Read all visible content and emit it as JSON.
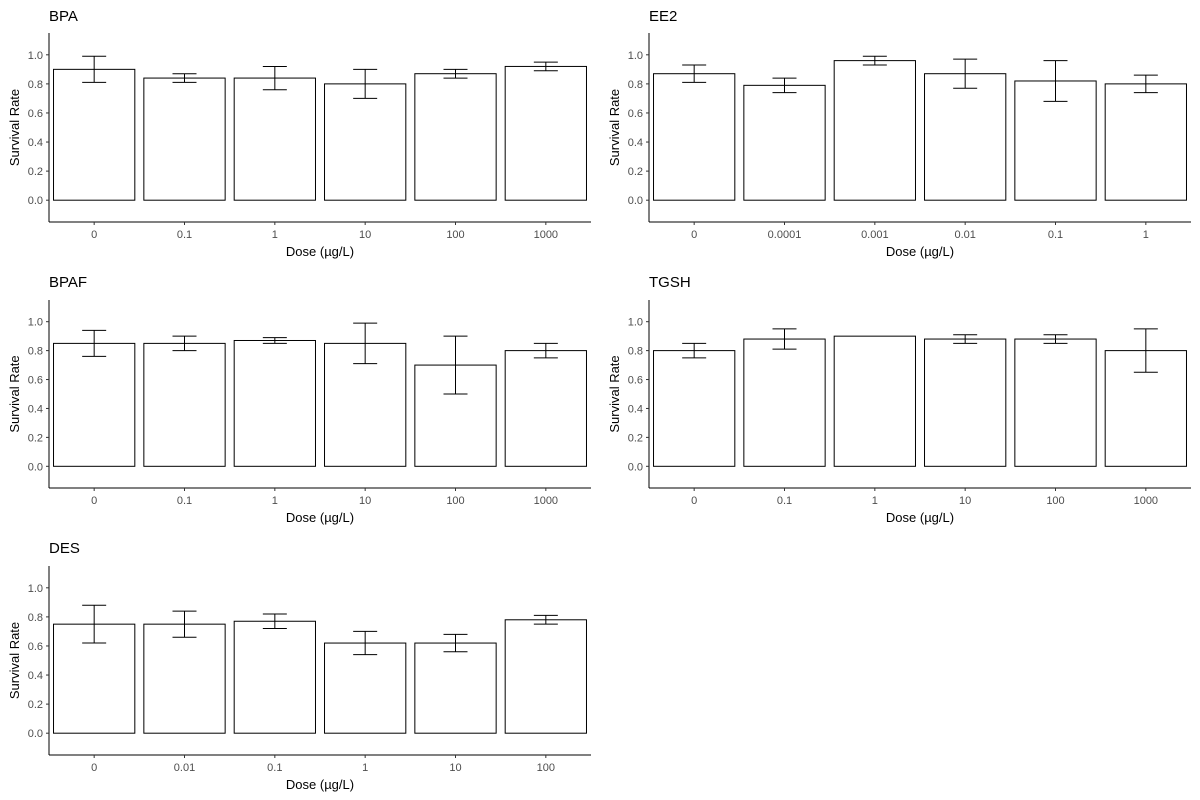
{
  "chart_data": [
    {
      "type": "bar",
      "title": "BPA",
      "xlabel": "Dose (µg/L)",
      "ylabel": "Survival Rate",
      "categories": [
        "0",
        "0.1",
        "1",
        "10",
        "100",
        "1000"
      ],
      "values": [
        0.9,
        0.84,
        0.84,
        0.8,
        0.87,
        0.92
      ],
      "error": [
        0.09,
        0.03,
        0.08,
        0.1,
        0.03,
        0.03
      ],
      "ylim": [
        -0.15,
        1.15
      ],
      "yticks": [
        "0.0",
        "0.2",
        "0.4",
        "0.6",
        "0.8",
        "1.0"
      ]
    },
    {
      "type": "bar",
      "title": "EE2",
      "xlabel": "Dose (µg/L)",
      "ylabel": "Survival Rate",
      "categories": [
        "0",
        "0.0001",
        "0.001",
        "0.01",
        "0.1",
        "1"
      ],
      "values": [
        0.87,
        0.79,
        0.96,
        0.87,
        0.82,
        0.8
      ],
      "error": [
        0.06,
        0.05,
        0.03,
        0.1,
        0.14,
        0.06
      ],
      "ylim": [
        -0.15,
        1.15
      ],
      "yticks": [
        "0.0",
        "0.2",
        "0.4",
        "0.6",
        "0.8",
        "1.0"
      ]
    },
    {
      "type": "bar",
      "title": "BPAF",
      "xlabel": "Dose (µg/L)",
      "ylabel": "Survival Rate",
      "categories": [
        "0",
        "0.1",
        "1",
        "10",
        "100",
        "1000"
      ],
      "values": [
        0.85,
        0.85,
        0.87,
        0.85,
        0.7,
        0.8
      ],
      "error": [
        0.09,
        0.05,
        0.02,
        0.14,
        0.2,
        0.05
      ],
      "ylim": [
        -0.15,
        1.15
      ],
      "yticks": [
        "0.0",
        "0.2",
        "0.4",
        "0.6",
        "0.8",
        "1.0"
      ]
    },
    {
      "type": "bar",
      "title": "TGSH",
      "xlabel": "Dose (µg/L)",
      "ylabel": "Survival Rate",
      "categories": [
        "0",
        "0.1",
        "1",
        "10",
        "100",
        "1000"
      ],
      "values": [
        0.8,
        0.88,
        0.9,
        0.88,
        0.88,
        0.8
      ],
      "error": [
        0.05,
        0.07,
        0.0,
        0.03,
        0.03,
        0.15
      ],
      "ylim": [
        -0.15,
        1.15
      ],
      "yticks": [
        "0.0",
        "0.2",
        "0.4",
        "0.6",
        "0.8",
        "1.0"
      ]
    },
    {
      "type": "bar",
      "title": "DES",
      "xlabel": "Dose (µg/L)",
      "ylabel": "Survival Rate",
      "categories": [
        "0",
        "0.01",
        "0.1",
        "1",
        "10",
        "100"
      ],
      "values": [
        0.75,
        0.75,
        0.77,
        0.62,
        0.62,
        0.78
      ],
      "error": [
        0.13,
        0.09,
        0.05,
        0.08,
        0.06,
        0.03
      ],
      "ylim": [
        -0.15,
        1.15
      ],
      "yticks": [
        "0.0",
        "0.2",
        "0.4",
        "0.6",
        "0.8",
        "1.0"
      ]
    }
  ]
}
